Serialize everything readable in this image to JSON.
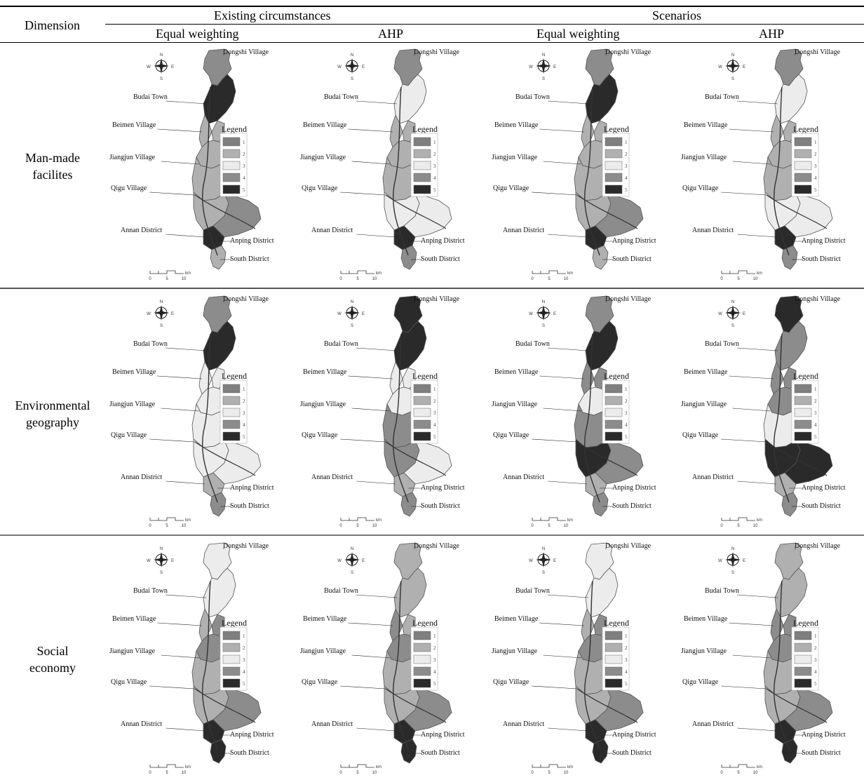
{
  "header": {
    "dimension": "Dimension",
    "groups": [
      "Existing circumstances",
      "Scenarios"
    ],
    "methods": [
      "Equal weighting",
      "AHP",
      "Equal weighting",
      "AHP"
    ]
  },
  "dimensions": [
    {
      "line1": "Man-made",
      "line2": "facilites"
    },
    {
      "line1": "Environmental",
      "line2": "geography"
    },
    {
      "line1": "Social",
      "line2": "economy"
    }
  ],
  "map": {
    "places": [
      "Dongshi Village",
      "Budai Town",
      "Beimen Village",
      "Jiangjun Village",
      "Qigu Village",
      "Annan District",
      "Anping District",
      "South District"
    ],
    "legend_title": "Legend",
    "legend_classes": [
      "1",
      "2",
      "3",
      "4",
      "5"
    ],
    "compass": {
      "n": "N",
      "s": "S",
      "e": "E",
      "w": "W"
    },
    "scale": {
      "unit": "km",
      "ticks": [
        "0",
        "5",
        "10"
      ]
    }
  },
  "colors": {
    "class_1": "#7f7f7f",
    "class_2": "#b0b0b0",
    "class_3": "#ececec",
    "class_4": "#8c8c8c",
    "class_5": "#2a2a2a"
  },
  "panels": [
    [
      {
        "id": "mm-ec-eq",
        "dongshi": 4,
        "budai": 5,
        "beimen": 2,
        "jiangjun": 2,
        "jiangjunE": 2,
        "qigu": 2,
        "annanW": 2,
        "annanE": 4,
        "anping": 5,
        "south": 2
      },
      {
        "id": "mm-ec-ahp",
        "dongshi": 4,
        "budai": 3,
        "beimen": 2,
        "jiangjun": 2,
        "jiangjunE": 2,
        "qigu": 2,
        "annanW": 3,
        "annanE": 3,
        "anping": 5,
        "south": 4
      },
      {
        "id": "mm-sc-eq",
        "dongshi": 4,
        "budai": 5,
        "beimen": 2,
        "jiangjun": 2,
        "jiangjunE": 2,
        "qigu": 2,
        "annanW": 2,
        "annanE": 4,
        "anping": 5,
        "south": 2
      },
      {
        "id": "mm-sc-ahp",
        "dongshi": 4,
        "budai": 3,
        "beimen": 2,
        "jiangjun": 2,
        "jiangjunE": 2,
        "qigu": 2,
        "annanW": 3,
        "annanE": 3,
        "anping": 5,
        "south": 4
      }
    ],
    [
      {
        "id": "eg-ec-eq",
        "dongshi": 4,
        "budai": 5,
        "beimen": 3,
        "jiangjun": 3,
        "jiangjunE": 3,
        "qigu": 3,
        "annanW": 3,
        "annanE": 3,
        "anping": 2,
        "south": 4
      },
      {
        "id": "eg-ec-ahp",
        "dongshi": 5,
        "budai": 5,
        "beimen": 3,
        "jiangjun": 3,
        "jiangjunE": 3,
        "qigu": 4,
        "annanW": 4,
        "annanE": 3,
        "anping": 2,
        "south": 4
      },
      {
        "id": "eg-sc-eq",
        "dongshi": 4,
        "budai": 5,
        "beimen": 4,
        "jiangjun": 3,
        "jiangjunE": 4,
        "qigu": 4,
        "annanW": 5,
        "annanE": 4,
        "anping": 2,
        "south": 4
      },
      {
        "id": "eg-sc-ahp",
        "dongshi": 5,
        "budai": 4,
        "beimen": 4,
        "jiangjun": 4,
        "jiangjunE": 4,
        "qigu": 3,
        "annanW": 5,
        "annanE": 5,
        "anping": 2,
        "south": 4
      }
    ],
    [
      {
        "id": "se-ec-eq",
        "dongshi": 3,
        "budai": 3,
        "beimen": 2,
        "jiangjun": 4,
        "jiangjunE": 4,
        "qigu": 2,
        "annanW": 2,
        "annanE": 4,
        "anping": 5,
        "south": 5
      },
      {
        "id": "se-ec-ahp",
        "dongshi": 2,
        "budai": 2,
        "beimen": 4,
        "jiangjun": 4,
        "jiangjunE": 2,
        "qigu": 2,
        "annanW": 2,
        "annanE": 4,
        "anping": 5,
        "south": 5
      },
      {
        "id": "se-sc-eq",
        "dongshi": 3,
        "budai": 3,
        "beimen": 2,
        "jiangjun": 4,
        "jiangjunE": 4,
        "qigu": 2,
        "annanW": 2,
        "annanE": 4,
        "anping": 5,
        "south": 5
      },
      {
        "id": "se-sc-ahp",
        "dongshi": 2,
        "budai": 2,
        "beimen": 4,
        "jiangjun": 4,
        "jiangjunE": 4,
        "qigu": 2,
        "annanW": 2,
        "annanE": 4,
        "anping": 5,
        "south": 5
      }
    ]
  ]
}
